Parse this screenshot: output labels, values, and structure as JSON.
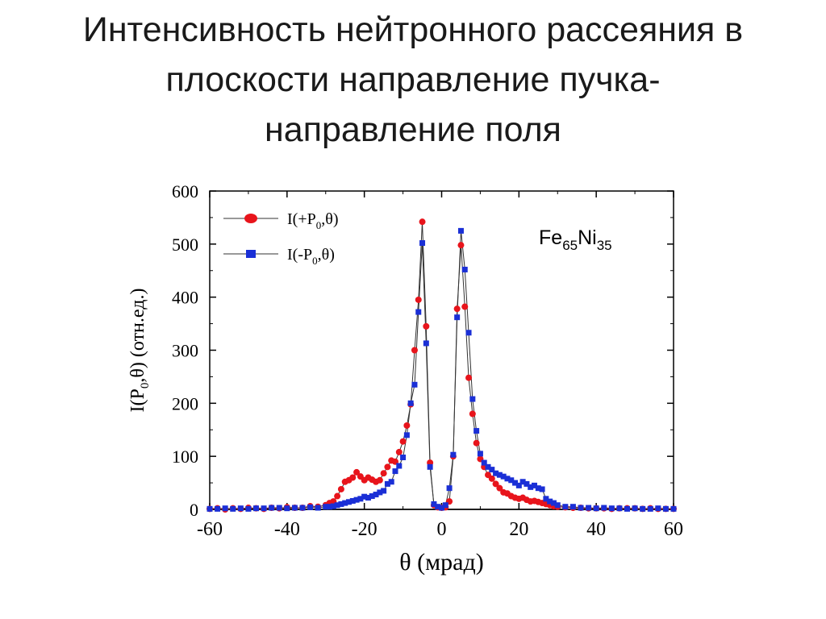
{
  "slide": {
    "title_lines": [
      "Интенсивность нейтронного рассеяния в",
      "плоскости направление пучка-",
      "направление поля"
    ]
  },
  "chart_data": {
    "type": "scatter",
    "xlabel": "θ (мрад)",
    "ylabel": "I(P0,θ) (отн.ед.)",
    "ylabel_parts": {
      "pre": "I(P",
      "sub": "0",
      "post": ",θ) (отн.ед.)"
    },
    "xlim": [
      -60,
      60
    ],
    "ylim": [
      0,
      600
    ],
    "xticks": [
      -60,
      -40,
      -20,
      0,
      20,
      40,
      60
    ],
    "yticks": [
      0,
      100,
      200,
      300,
      400,
      500,
      600
    ],
    "grid": false,
    "legend_position": "top-left",
    "annotation": {
      "pre": "Fe",
      "sub1": "65",
      "mid": "Ni",
      "sub2": "35"
    },
    "series": [
      {
        "name": "I(+P0,θ)",
        "label_parts": {
          "pre": "I(+P",
          "sub": "0",
          "post": ",θ)"
        },
        "marker": "circle",
        "color": "#e8141b",
        "points": [
          [
            -60,
            1
          ],
          [
            -58,
            2
          ],
          [
            -56,
            0
          ],
          [
            -54,
            2
          ],
          [
            -52,
            1
          ],
          [
            -50,
            3
          ],
          [
            -48,
            2
          ],
          [
            -46,
            1
          ],
          [
            -44,
            3
          ],
          [
            -42,
            2
          ],
          [
            -40,
            4
          ],
          [
            -38,
            3
          ],
          [
            -36,
            3
          ],
          [
            -34,
            6
          ],
          [
            -32,
            5
          ],
          [
            -30,
            8
          ],
          [
            -29,
            12
          ],
          [
            -28,
            15
          ],
          [
            -27,
            25
          ],
          [
            -26,
            38
          ],
          [
            -25,
            52
          ],
          [
            -24,
            55
          ],
          [
            -23,
            60
          ],
          [
            -22,
            70
          ],
          [
            -21,
            62
          ],
          [
            -20,
            55
          ],
          [
            -19,
            60
          ],
          [
            -18,
            56
          ],
          [
            -17,
            52
          ],
          [
            -16,
            55
          ],
          [
            -15,
            68
          ],
          [
            -14,
            80
          ],
          [
            -13,
            92
          ],
          [
            -12,
            90
          ],
          [
            -11,
            108
          ],
          [
            -10,
            128
          ],
          [
            -9,
            158
          ],
          [
            -8,
            198
          ],
          [
            -7,
            300
          ],
          [
            -6,
            395
          ],
          [
            -5,
            542
          ],
          [
            -4,
            345
          ],
          [
            -3,
            88
          ],
          [
            -2,
            8
          ],
          [
            -1,
            4
          ],
          [
            0,
            3
          ],
          [
            1,
            4
          ],
          [
            2,
            15
          ],
          [
            3,
            100
          ],
          [
            4,
            378
          ],
          [
            5,
            498
          ],
          [
            6,
            382
          ],
          [
            7,
            248
          ],
          [
            8,
            180
          ],
          [
            9,
            125
          ],
          [
            10,
            95
          ],
          [
            11,
            80
          ],
          [
            12,
            65
          ],
          [
            13,
            58
          ],
          [
            14,
            48
          ],
          [
            15,
            40
          ],
          [
            16,
            32
          ],
          [
            17,
            30
          ],
          [
            18,
            25
          ],
          [
            19,
            22
          ],
          [
            20,
            20
          ],
          [
            21,
            22
          ],
          [
            22,
            18
          ],
          [
            23,
            15
          ],
          [
            24,
            16
          ],
          [
            25,
            14
          ],
          [
            26,
            12
          ],
          [
            27,
            10
          ],
          [
            28,
            8
          ],
          [
            29,
            6
          ],
          [
            30,
            5
          ],
          [
            32,
            4
          ],
          [
            34,
            3
          ],
          [
            36,
            3
          ],
          [
            38,
            2
          ],
          [
            40,
            2
          ],
          [
            42,
            2
          ],
          [
            44,
            1
          ],
          [
            46,
            2
          ],
          [
            48,
            2
          ],
          [
            50,
            2
          ],
          [
            52,
            1
          ],
          [
            54,
            2
          ],
          [
            56,
            1
          ],
          [
            58,
            1
          ],
          [
            60,
            1
          ]
        ]
      },
      {
        "name": "I(-P0,θ)",
        "label_parts": {
          "pre": "I(-P",
          "sub": "0",
          "post": ",θ)"
        },
        "marker": "square",
        "color": "#1a2fd6",
        "points": [
          [
            -60,
            1
          ],
          [
            -58,
            1
          ],
          [
            -56,
            2
          ],
          [
            -54,
            1
          ],
          [
            -52,
            2
          ],
          [
            -50,
            1
          ],
          [
            -48,
            2
          ],
          [
            -46,
            2
          ],
          [
            -44,
            3
          ],
          [
            -42,
            3
          ],
          [
            -40,
            2
          ],
          [
            -38,
            3
          ],
          [
            -36,
            3
          ],
          [
            -34,
            4
          ],
          [
            -32,
            3
          ],
          [
            -30,
            5
          ],
          [
            -29,
            5
          ],
          [
            -28,
            6
          ],
          [
            -27,
            8
          ],
          [
            -26,
            10
          ],
          [
            -25,
            12
          ],
          [
            -24,
            14
          ],
          [
            -23,
            16
          ],
          [
            -22,
            18
          ],
          [
            -21,
            20
          ],
          [
            -20,
            24
          ],
          [
            -19,
            22
          ],
          [
            -18,
            25
          ],
          [
            -17,
            28
          ],
          [
            -16,
            32
          ],
          [
            -15,
            35
          ],
          [
            -14,
            48
          ],
          [
            -13,
            52
          ],
          [
            -12,
            72
          ],
          [
            -11,
            82
          ],
          [
            -10,
            98
          ],
          [
            -9,
            140
          ],
          [
            -8,
            200
          ],
          [
            -7,
            235
          ],
          [
            -6,
            372
          ],
          [
            -5,
            502
          ],
          [
            -4,
            313
          ],
          [
            -3,
            80
          ],
          [
            -2,
            10
          ],
          [
            -1,
            5
          ],
          [
            0,
            3
          ],
          [
            1,
            8
          ],
          [
            2,
            40
          ],
          [
            3,
            103
          ],
          [
            4,
            362
          ],
          [
            5,
            525
          ],
          [
            6,
            452
          ],
          [
            7,
            333
          ],
          [
            8,
            208
          ],
          [
            9,
            148
          ],
          [
            10,
            105
          ],
          [
            11,
            88
          ],
          [
            12,
            80
          ],
          [
            13,
            75
          ],
          [
            14,
            68
          ],
          [
            15,
            65
          ],
          [
            16,
            62
          ],
          [
            17,
            58
          ],
          [
            18,
            55
          ],
          [
            19,
            50
          ],
          [
            20,
            45
          ],
          [
            21,
            52
          ],
          [
            22,
            48
          ],
          [
            23,
            42
          ],
          [
            24,
            45
          ],
          [
            25,
            40
          ],
          [
            26,
            38
          ],
          [
            27,
            20
          ],
          [
            28,
            15
          ],
          [
            29,
            12
          ],
          [
            30,
            8
          ],
          [
            32,
            5
          ],
          [
            34,
            5
          ],
          [
            36,
            3
          ],
          [
            38,
            3
          ],
          [
            40,
            2
          ],
          [
            42,
            3
          ],
          [
            44,
            2
          ],
          [
            46,
            2
          ],
          [
            48,
            1
          ],
          [
            50,
            2
          ],
          [
            52,
            1
          ],
          [
            54,
            1
          ],
          [
            56,
            2
          ],
          [
            58,
            1
          ],
          [
            60,
            1
          ]
        ]
      }
    ]
  }
}
